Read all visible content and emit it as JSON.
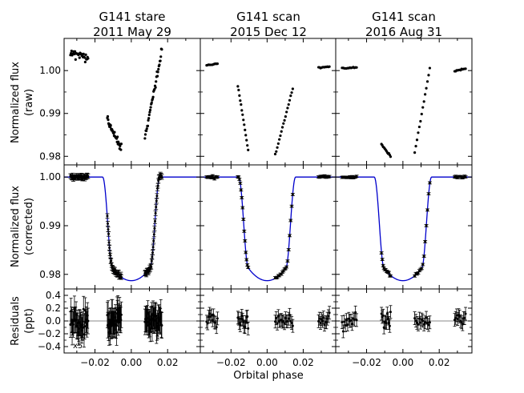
{
  "chart_data": {
    "type": "scatter",
    "columns": [
      {
        "title_line1": "G141 stare",
        "title_line2": "2011 May 29"
      },
      {
        "title_line1": "G141 scan",
        "title_line2": "2015 Dec 12"
      },
      {
        "title_line1": "G141 scan",
        "title_line2": "2016 Aug 31"
      }
    ],
    "rows": [
      {
        "ylabel_line1": "Normalized flux",
        "ylabel_line2": "(raw)",
        "ylim": [
          0.978,
          1.0075
        ],
        "ticks": [
          "0.98",
          "0.99",
          "1.00"
        ],
        "tick_values": [
          0.98,
          0.99,
          1.0
        ]
      },
      {
        "ylabel_line1": "Normalized flux",
        "ylabel_line2": "(corrected)",
        "ylim": [
          0.977,
          1.0025
        ],
        "ticks": [
          "0.98",
          "0.99",
          "1.00"
        ],
        "tick_values": [
          0.98,
          0.99,
          1.0
        ]
      },
      {
        "ylabel_line1": "Residuals",
        "ylabel_line2": "(ppt)",
        "ylim": [
          -0.5,
          0.5
        ],
        "ticks": [
          "−0.4",
          "−0.2",
          "0.0",
          "0.2",
          "0.4"
        ],
        "tick_values": [
          -0.4,
          -0.2,
          0.0,
          0.2,
          0.4
        ]
      }
    ],
    "xlabel": "Orbital phase",
    "xlim": [
      -0.037,
      0.038
    ],
    "xticks": [
      "−0.02",
      "0.00",
      "0.02"
    ],
    "xtick_values": [
      -0.02,
      0.0,
      0.02
    ],
    "residual_scale_note": "x5",
    "model": {
      "transit_depth": 0.0213,
      "ingress_start": -0.0158,
      "ingress_end": -0.0105,
      "egress_start": 0.0105,
      "egress_end": 0.0158
    },
    "visits": [
      {
        "orbits": [
          {
            "x_start": -0.0335,
            "x_end": -0.0238,
            "n": 32,
            "raw_start": 1.0043,
            "raw_end": 1.0029,
            "raw_scatter": 0.0016
          },
          {
            "x_start": -0.0132,
            "x_end": -0.0055,
            "n": 34,
            "raw_start": 0.9885,
            "raw_end": 0.9818,
            "raw_scatter": 0.0016
          },
          {
            "x_start": 0.0075,
            "x_end": 0.0168,
            "n": 36,
            "raw_start": 0.9845,
            "raw_end": 1.0045,
            "raw_scatter": 0.0016
          }
        ],
        "corrected_scatter": 0.0004,
        "residual_scatter": 0.16,
        "residual_error": 0.2
      },
      {
        "orbits": [
          {
            "x_start": -0.0335,
            "x_end": -0.0275,
            "n": 12,
            "raw_start": 1.0013,
            "raw_end": 1.0016,
            "raw_scatter": 0.0002
          },
          {
            "x_start": -0.0162,
            "x_end": -0.0105,
            "n": 14,
            "raw_start": 0.9965,
            "raw_end": 0.9815,
            "raw_scatter": 0.0003
          },
          {
            "x_start": 0.0045,
            "x_end": 0.0142,
            "n": 18,
            "raw_start": 0.9803,
            "raw_end": 0.9958,
            "raw_scatter": 0.0003
          },
          {
            "x_start": 0.0285,
            "x_end": 0.0345,
            "n": 12,
            "raw_start": 1.0007,
            "raw_end": 1.0009,
            "raw_scatter": 0.0002
          }
        ],
        "corrected_scatter": 0.0002,
        "residual_scatter": 0.1,
        "residual_error": 0.1
      },
      {
        "orbits": [
          {
            "x_start": -0.0335,
            "x_end": -0.0255,
            "n": 14,
            "raw_start": 1.0005,
            "raw_end": 1.0007,
            "raw_scatter": 0.0002
          },
          {
            "x_start": -0.0118,
            "x_end": -0.0068,
            "n": 12,
            "raw_start": 0.9828,
            "raw_end": 0.98,
            "raw_scatter": 0.0003
          },
          {
            "x_start": 0.0065,
            "x_end": 0.0148,
            "n": 14,
            "raw_start": 0.9808,
            "raw_end": 1.0004,
            "raw_scatter": 0.0003
          },
          {
            "x_start": 0.0285,
            "x_end": 0.0345,
            "n": 12,
            "raw_start": 0.9999,
            "raw_end": 1.0004,
            "raw_scatter": 0.0002
          }
        ],
        "corrected_scatter": 0.0002,
        "residual_scatter": 0.1,
        "residual_error": 0.1
      }
    ]
  }
}
